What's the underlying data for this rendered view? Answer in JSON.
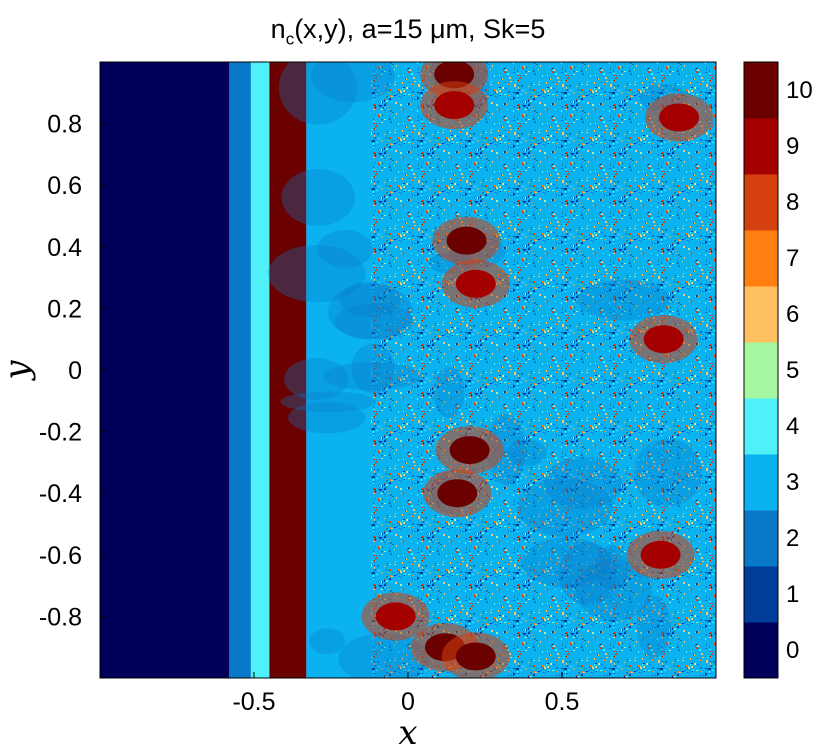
{
  "title": {
    "prefix": "n",
    "subscript": "c",
    "suffix": "(x,y), a=15 μm, Sk=5"
  },
  "chart_data": {
    "type": "heatmap",
    "title": "n_c(x,y), a=15 μm, Sk=5",
    "xlabel": "x",
    "ylabel": "y",
    "xlim": [
      -1,
      1
    ],
    "ylim": [
      -1,
      1
    ],
    "x_ticks": [
      -0.5,
      0,
      0.5
    ],
    "x_tick_labels": [
      "-0.5",
      "0",
      "0.5"
    ],
    "y_ticks": [
      0.8,
      0.6,
      0.4,
      0.2,
      0,
      -0.2,
      -0.4,
      -0.6,
      -0.8
    ],
    "y_tick_labels": [
      "0.8",
      "0.6",
      "0.4",
      "0.2",
      "0",
      "-0.2",
      "-0.4",
      "-0.6",
      "-0.8"
    ],
    "colorbar": {
      "levels": [
        0,
        1,
        2,
        3,
        4,
        5,
        6,
        7,
        8,
        9,
        10
      ],
      "labels": [
        "0",
        "1",
        "2",
        "3",
        "4",
        "5",
        "6",
        "7",
        "8",
        "9",
        "10"
      ],
      "colors": [
        "#00005a",
        "#003c9a",
        "#0a78c8",
        "#0ab2f0",
        "#4ff0f8",
        "#a6f8a0",
        "#ffc060",
        "#ff8010",
        "#d44010",
        "#a40000",
        "#6a0000"
      ]
    },
    "regions": [
      {
        "x": [
          -1.0,
          -0.58
        ],
        "level": 0
      },
      {
        "x": [
          -0.58,
          -0.51
        ],
        "level": 2
      },
      {
        "x": [
          -0.51,
          -0.45
        ],
        "level": 4
      },
      {
        "x": [
          -0.45,
          -0.33
        ],
        "level": 10
      },
      {
        "x": [
          -0.33,
          -0.12
        ],
        "level": 3
      },
      {
        "x": [
          -0.12,
          1.0
        ],
        "level": 3
      }
    ],
    "hotspots": [
      {
        "x": 0.15,
        "y": 0.96,
        "level": 10
      },
      {
        "x": 0.15,
        "y": 0.86,
        "level": 9
      },
      {
        "x": 0.19,
        "y": 0.42,
        "level": 10
      },
      {
        "x": 0.22,
        "y": 0.28,
        "level": 9
      },
      {
        "x": 0.2,
        "y": -0.26,
        "level": 10
      },
      {
        "x": 0.16,
        "y": -0.4,
        "level": 10
      },
      {
        "x": 0.12,
        "y": -0.9,
        "level": 10
      },
      {
        "x": 0.22,
        "y": -0.93,
        "level": 10
      },
      {
        "x": -0.04,
        "y": -0.8,
        "level": 9
      },
      {
        "x": 0.88,
        "y": 0.82,
        "level": 9
      },
      {
        "x": 0.83,
        "y": 0.1,
        "level": 9
      },
      {
        "x": 0.82,
        "y": -0.6,
        "level": 9
      }
    ]
  }
}
